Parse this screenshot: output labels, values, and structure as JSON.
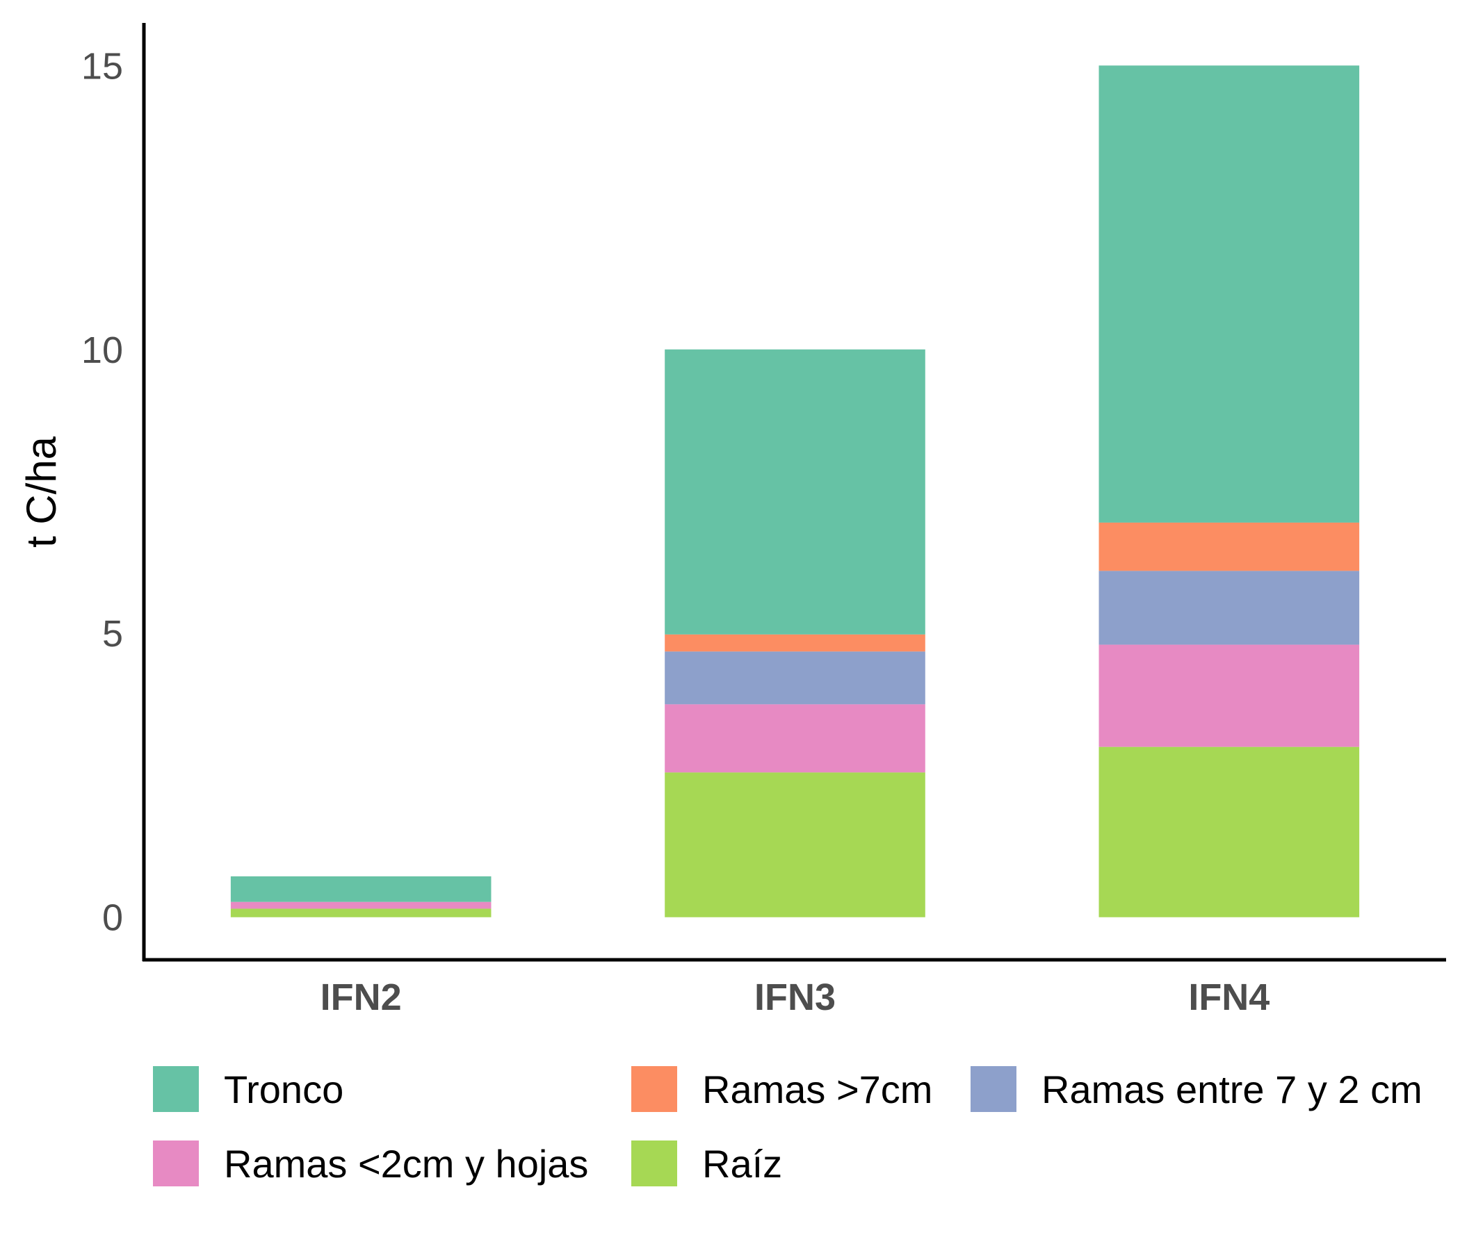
{
  "chart_data": {
    "type": "bar",
    "stacked": true,
    "title": "",
    "xlabel": "",
    "ylabel": "t C/ha",
    "ylim": [
      -0.75,
      15.75
    ],
    "yticks": [
      0,
      5,
      10,
      15
    ],
    "grid": false,
    "legend_position": "bottom",
    "categories": [
      "IFN2",
      "IFN3",
      "IFN4"
    ],
    "series": [
      {
        "name": "Raíz",
        "color": "#A6D854",
        "values": [
          0.15,
          2.55,
          3.0
        ]
      },
      {
        "name": "Ramas <2cm y hojas",
        "color": "#E78AC3",
        "values": [
          0.12,
          1.2,
          1.8
        ]
      },
      {
        "name": "Ramas entre 7 y 2 cm",
        "color": "#8DA0CB",
        "values": [
          0.0,
          0.93,
          1.3
        ]
      },
      {
        "name": "Ramas >7cm",
        "color": "#FC8D62",
        "values": [
          0.0,
          0.3,
          0.85
        ]
      },
      {
        "name": "Tronco",
        "color": "#66C2A5",
        "values": [
          0.45,
          5.02,
          8.05
        ]
      }
    ],
    "legend_order": [
      "Tronco",
      "Ramas >7cm",
      "Ramas entre 7 y 2 cm",
      "Ramas <2cm y hojas",
      "Raíz"
    ]
  }
}
